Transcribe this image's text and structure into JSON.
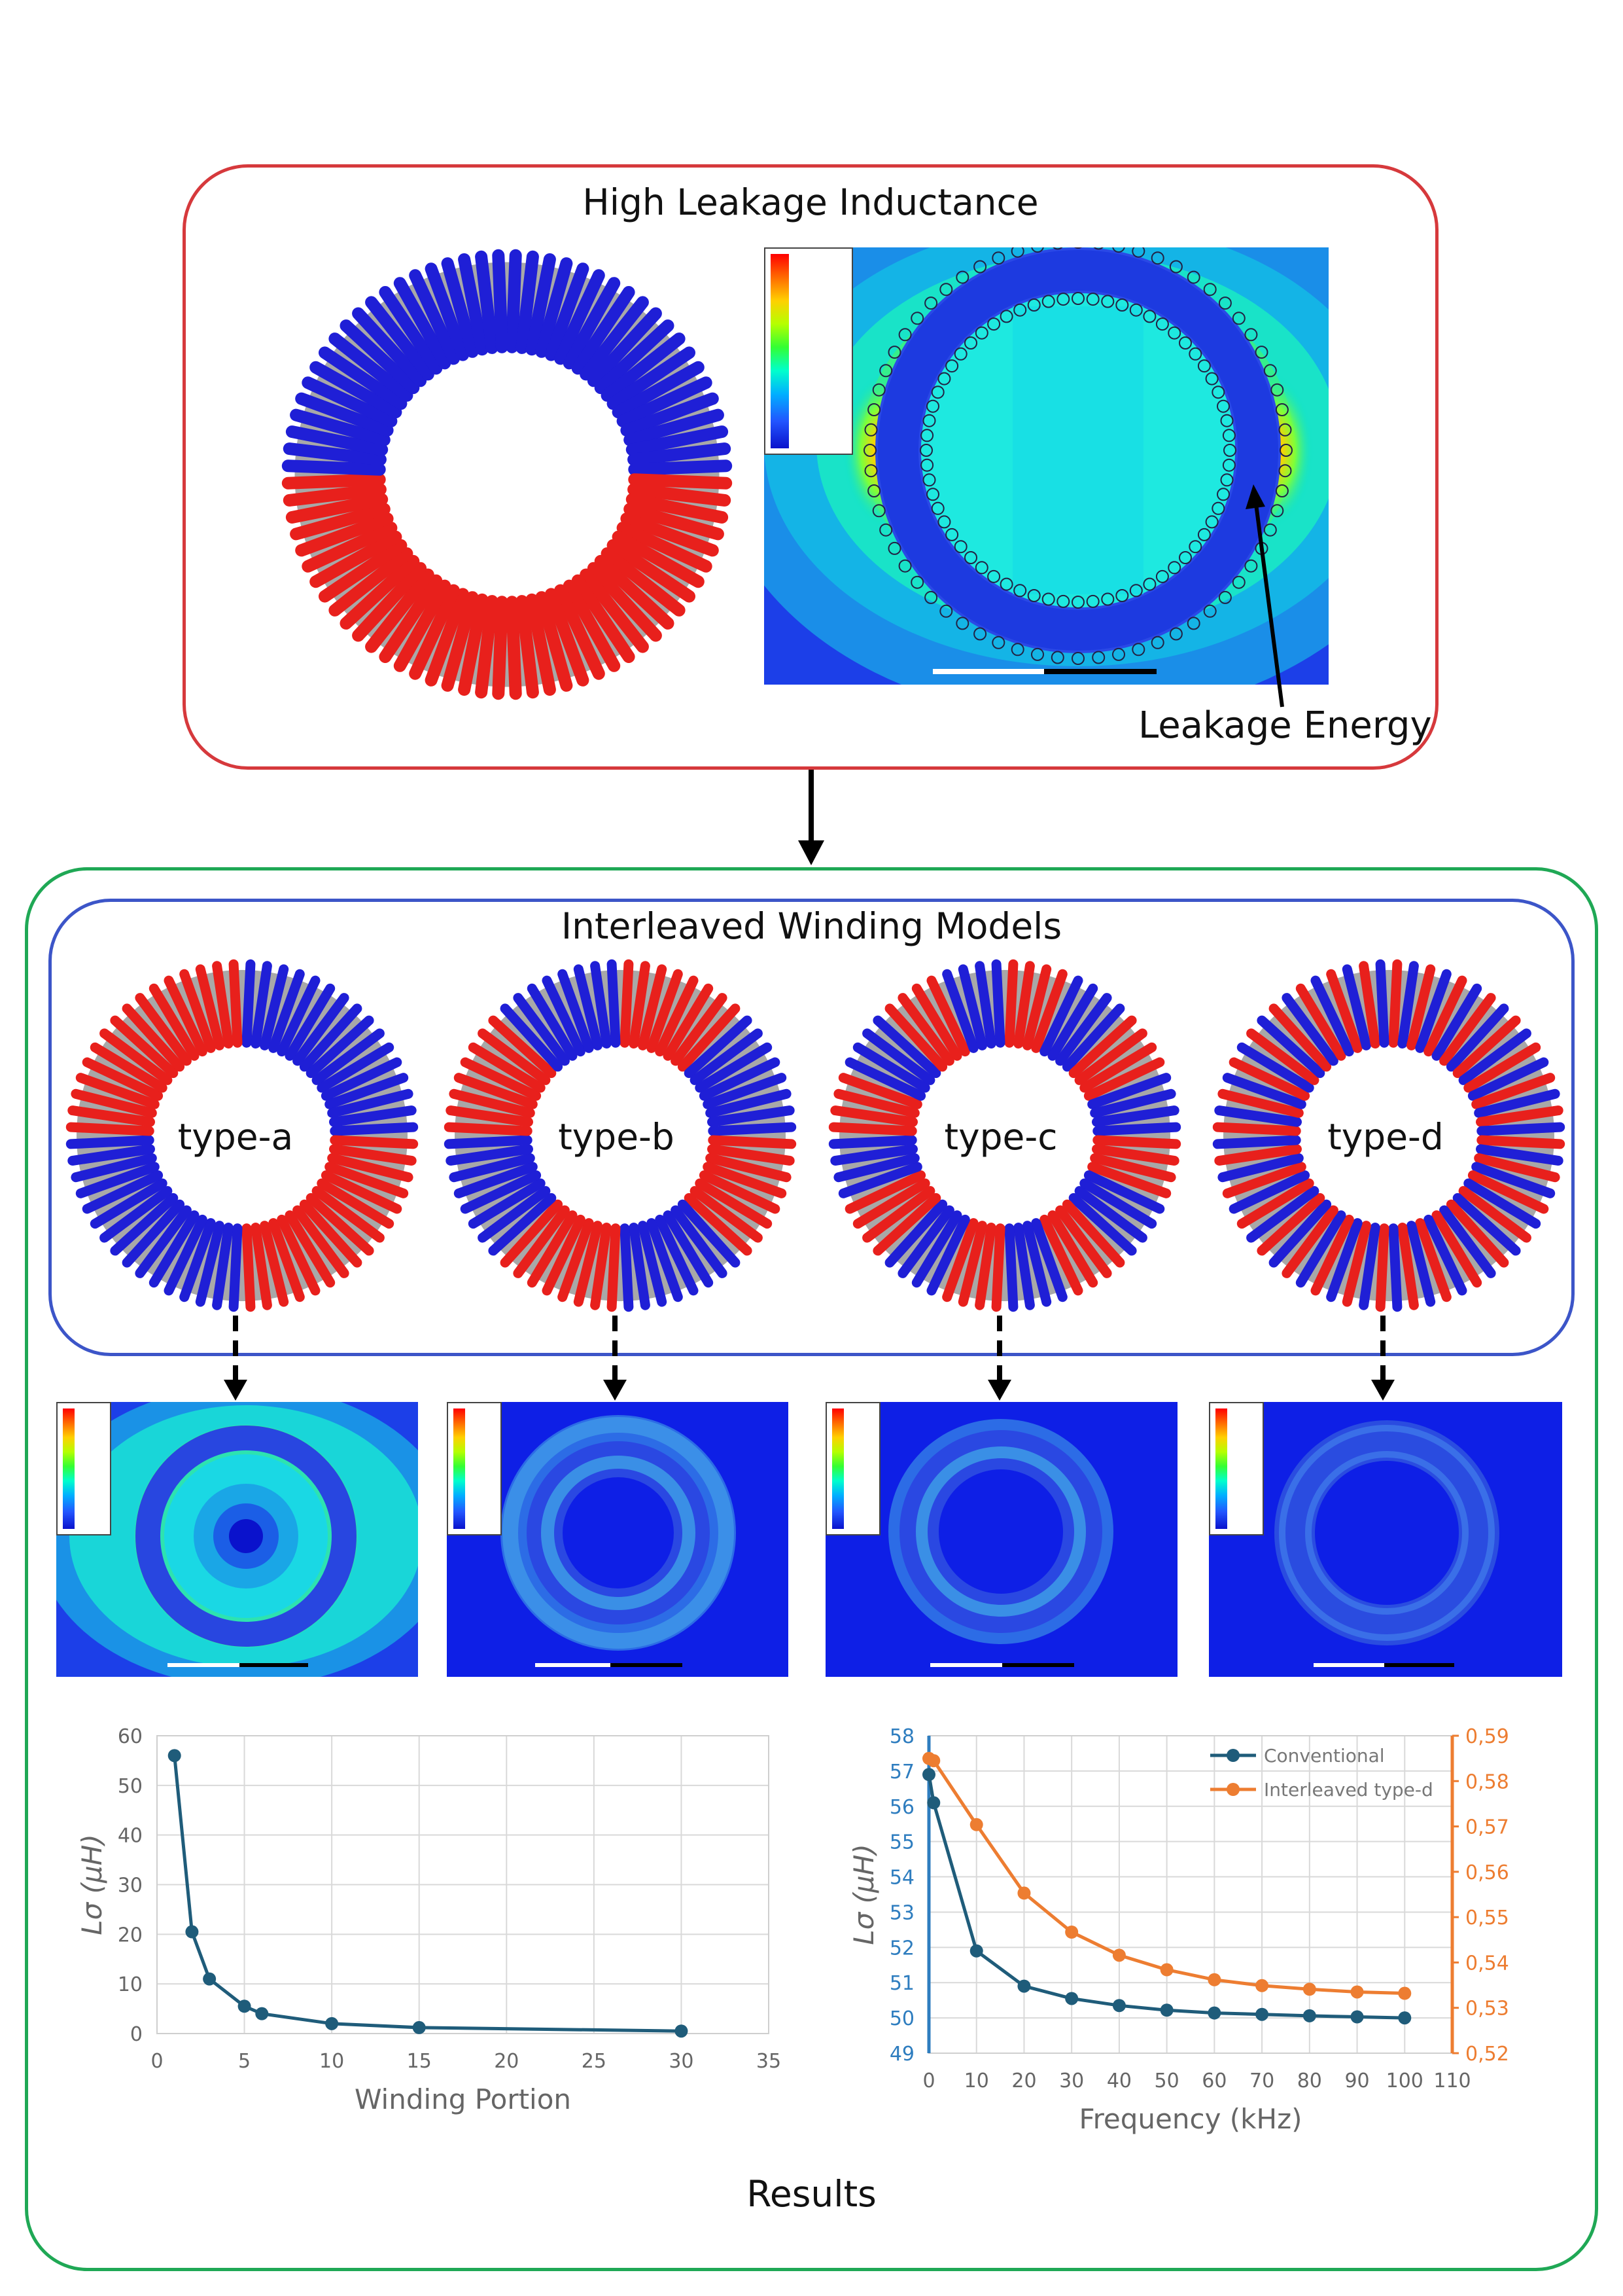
{
  "top_box": {
    "title": "High Leakage Inductance",
    "annotation": "Leakage Energy"
  },
  "interleaved_box": {
    "title": "Interleaved Winding Models"
  },
  "types": [
    {
      "label": "type-a"
    },
    {
      "label": "type-b"
    },
    {
      "label": "type-c"
    },
    {
      "label": "type-d"
    }
  ],
  "colors": {
    "primary_winding": "#e8201c",
    "secondary_winding": "#1f1fd6",
    "core": "#a8a8a8",
    "frame_red": "#d6393c",
    "frame_green": "#1fa855",
    "frame_blue": "#3c55c8",
    "series_conventional": "#1f5c7a",
    "series_interleaved": "#ed7d31"
  },
  "results": {
    "label": "Results"
  },
  "chart_data": [
    {
      "type": "line",
      "title": "",
      "xlabel": "Winding Portion",
      "ylabel": "Lσ (μH)",
      "xlim": [
        0,
        35
      ],
      "ylim": [
        0,
        60
      ],
      "xticks": [
        0,
        5,
        10,
        15,
        20,
        25,
        30,
        35
      ],
      "yticks": [
        0,
        10,
        20,
        30,
        40,
        50,
        60
      ],
      "grid": true,
      "series": [
        {
          "name": "Lσ",
          "x": [
            1,
            2,
            3,
            5,
            6,
            10,
            15,
            30
          ],
          "y": [
            56,
            20.5,
            11,
            5.5,
            4,
            2,
            1.2,
            0.5
          ]
        }
      ]
    },
    {
      "type": "line",
      "title": "",
      "xlabel": "Frequency (kHz)",
      "ylabel": "Lσ (μH)",
      "xlim": [
        0,
        110
      ],
      "ylim": [
        49,
        58
      ],
      "y2lim": [
        0.52,
        0.59
      ],
      "xticks": [
        0,
        10,
        20,
        30,
        40,
        50,
        60,
        70,
        80,
        90,
        100,
        110
      ],
      "yticks": [
        49,
        50,
        51,
        52,
        53,
        54,
        55,
        56,
        57,
        58
      ],
      "y2ticks": [
        "0,52",
        "0,53",
        "0,54",
        "0,55",
        "0,56",
        "0,57",
        "0,58",
        "0,59"
      ],
      "legend": "top-right",
      "grid": true,
      "series": [
        {
          "name": "Conventional",
          "axis": "left",
          "x": [
            0,
            1,
            10,
            20,
            30,
            40,
            50,
            60,
            70,
            80,
            90,
            100
          ],
          "y": [
            56.9,
            56.1,
            51.9,
            50.9,
            50.55,
            50.35,
            50.22,
            50.14,
            50.1,
            50.06,
            50.03,
            50.0
          ]
        },
        {
          "name": "Interleaved type-d",
          "axis": "right",
          "x": [
            0,
            1,
            10,
            20,
            30,
            40,
            50,
            60,
            70,
            80,
            90,
            100
          ],
          "y": [
            0.585,
            0.5845,
            0.5704,
            0.5553,
            0.5467,
            0.5416,
            0.5384,
            0.5362,
            0.5349,
            0.5341,
            0.5335,
            0.5332
          ]
        }
      ]
    }
  ]
}
